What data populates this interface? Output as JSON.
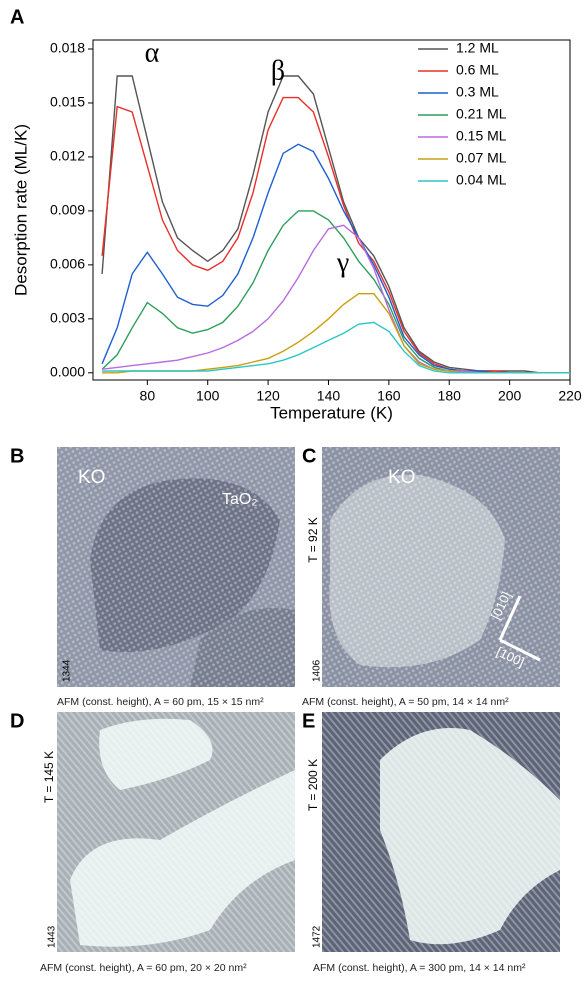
{
  "chart_data": {
    "type": "line",
    "panel_label": "A",
    "x_label": "Temperature (K)",
    "y_label": "Desorption rate (ML/K)",
    "annotations": [
      "α",
      "β",
      "γ"
    ],
    "x": [
      65,
      70,
      75,
      80,
      85,
      90,
      95,
      100,
      105,
      110,
      115,
      120,
      125,
      130,
      135,
      140,
      145,
      150,
      155,
      160,
      165,
      170,
      175,
      180,
      185,
      190,
      195,
      200,
      205,
      210,
      215,
      220
    ],
    "xlim": [
      62,
      220
    ],
    "xticks": [
      80,
      100,
      120,
      140,
      160,
      180,
      200,
      220
    ],
    "ylim": [
      -0.0004,
      0.0185
    ],
    "yticks": [
      {
        "value": 0,
        "label": "0.000"
      },
      0.003,
      0.006,
      0.009,
      0.012,
      0.015,
      0.018
    ],
    "legend": "upper right",
    "series": [
      {
        "name": "1.2 ML",
        "color": "#555555",
        "values": [
          0.0055,
          0.0165,
          0.0165,
          0.013,
          0.0095,
          0.0075,
          0.0068,
          0.0062,
          0.0068,
          0.008,
          0.011,
          0.0145,
          0.0165,
          0.0165,
          0.0155,
          0.0125,
          0.0095,
          0.0075,
          0.0065,
          0.0048,
          0.0025,
          0.0012,
          0.0006,
          0.0003,
          0.0002,
          0.0001,
          0.0001,
          0.0001,
          0.0001,
          0,
          0,
          0
        ]
      },
      {
        "name": "0.6 ML",
        "color": "#e8302a",
        "values": [
          0.0065,
          0.0148,
          0.0145,
          0.0115,
          0.0085,
          0.0068,
          0.006,
          0.0057,
          0.0062,
          0.0075,
          0.01,
          0.0135,
          0.0153,
          0.0153,
          0.0145,
          0.012,
          0.0093,
          0.0072,
          0.0062,
          0.0045,
          0.0023,
          0.0011,
          0.0005,
          0.0002,
          0.0001,
          0.0001,
          0.0001,
          0,
          0,
          0,
          0,
          0
        ]
      },
      {
        "name": "0.3 ML",
        "color": "#1f5fd0",
        "values": [
          0.0005,
          0.0025,
          0.0055,
          0.0067,
          0.0055,
          0.0042,
          0.0038,
          0.0037,
          0.0043,
          0.0055,
          0.0075,
          0.01,
          0.0122,
          0.0127,
          0.0123,
          0.0108,
          0.009,
          0.0075,
          0.006,
          0.0042,
          0.002,
          0.001,
          0.0004,
          0.0002,
          0.0001,
          0.0001,
          0,
          0,
          0,
          0,
          0,
          0
        ]
      },
      {
        "name": "0.21 ML",
        "color": "#2e9e5a",
        "values": [
          0.0002,
          0.001,
          0.0025,
          0.0039,
          0.0033,
          0.0025,
          0.0022,
          0.0024,
          0.0028,
          0.0037,
          0.005,
          0.0068,
          0.0082,
          0.009,
          0.009,
          0.0085,
          0.0075,
          0.0062,
          0.0052,
          0.0038,
          0.0018,
          0.0008,
          0.0003,
          0.0001,
          0.0001,
          0,
          0,
          0,
          0,
          0,
          0,
          0
        ]
      },
      {
        "name": "0.15 ML",
        "color": "#b86ce0",
        "values": [
          0.0002,
          0.0003,
          0.0004,
          0.0005,
          0.0006,
          0.0007,
          0.0009,
          0.0011,
          0.0014,
          0.0018,
          0.0023,
          0.003,
          0.004,
          0.0053,
          0.0068,
          0.008,
          0.0082,
          0.0075,
          0.0058,
          0.0035,
          0.0015,
          0.0006,
          0.0002,
          0.0001,
          0.0001,
          0,
          0,
          0,
          0,
          0,
          0,
          0
        ]
      },
      {
        "name": "0.07 ML",
        "color": "#c9a010",
        "values": [
          0,
          0,
          0.0001,
          0.0001,
          0.0001,
          0.0001,
          0.0001,
          0.0002,
          0.0003,
          0.0004,
          0.0006,
          0.0008,
          0.0012,
          0.0017,
          0.0023,
          0.003,
          0.0038,
          0.0044,
          0.0044,
          0.0033,
          0.0015,
          0.0005,
          0.0002,
          0.0001,
          0,
          0,
          0,
          0,
          0,
          0,
          0,
          0
        ]
      },
      {
        "name": "0.04 ML",
        "color": "#2ec6c6",
        "values": [
          0.0001,
          0.0001,
          0.0001,
          0.0001,
          0.0001,
          0.0001,
          0.0001,
          0.0001,
          0.0002,
          0.0003,
          0.0004,
          0.0005,
          0.0007,
          0.001,
          0.0014,
          0.0018,
          0.0022,
          0.0027,
          0.0028,
          0.0023,
          0.0012,
          0.0004,
          0.0001,
          0,
          0,
          0,
          0,
          0,
          0,
          0,
          0,
          0
        ]
      }
    ]
  },
  "panels": [
    {
      "label": "B",
      "texts": [
        "KO",
        "TaO₂"
      ],
      "id": "1344",
      "caption": "AFM (const. height), A = 60 pm, 15 × 15 nm²"
    },
    {
      "label": "C",
      "texts": [
        "KO",
        "[010]",
        "[100]"
      ],
      "temperature": "T = 92 K",
      "id": "1406",
      "caption": "AFM (const. height), A = 50 pm, 14 × 14 nm²"
    },
    {
      "label": "D",
      "temperature": "T = 145 K",
      "id": "1443",
      "caption": "AFM (const. height), A = 60 pm, 20 × 20 nm²"
    },
    {
      "label": "E",
      "temperature": "T = 200 K",
      "id": "1472",
      "caption": "AFM (const. height), A = 300 pm, 14 × 14 nm²"
    }
  ]
}
